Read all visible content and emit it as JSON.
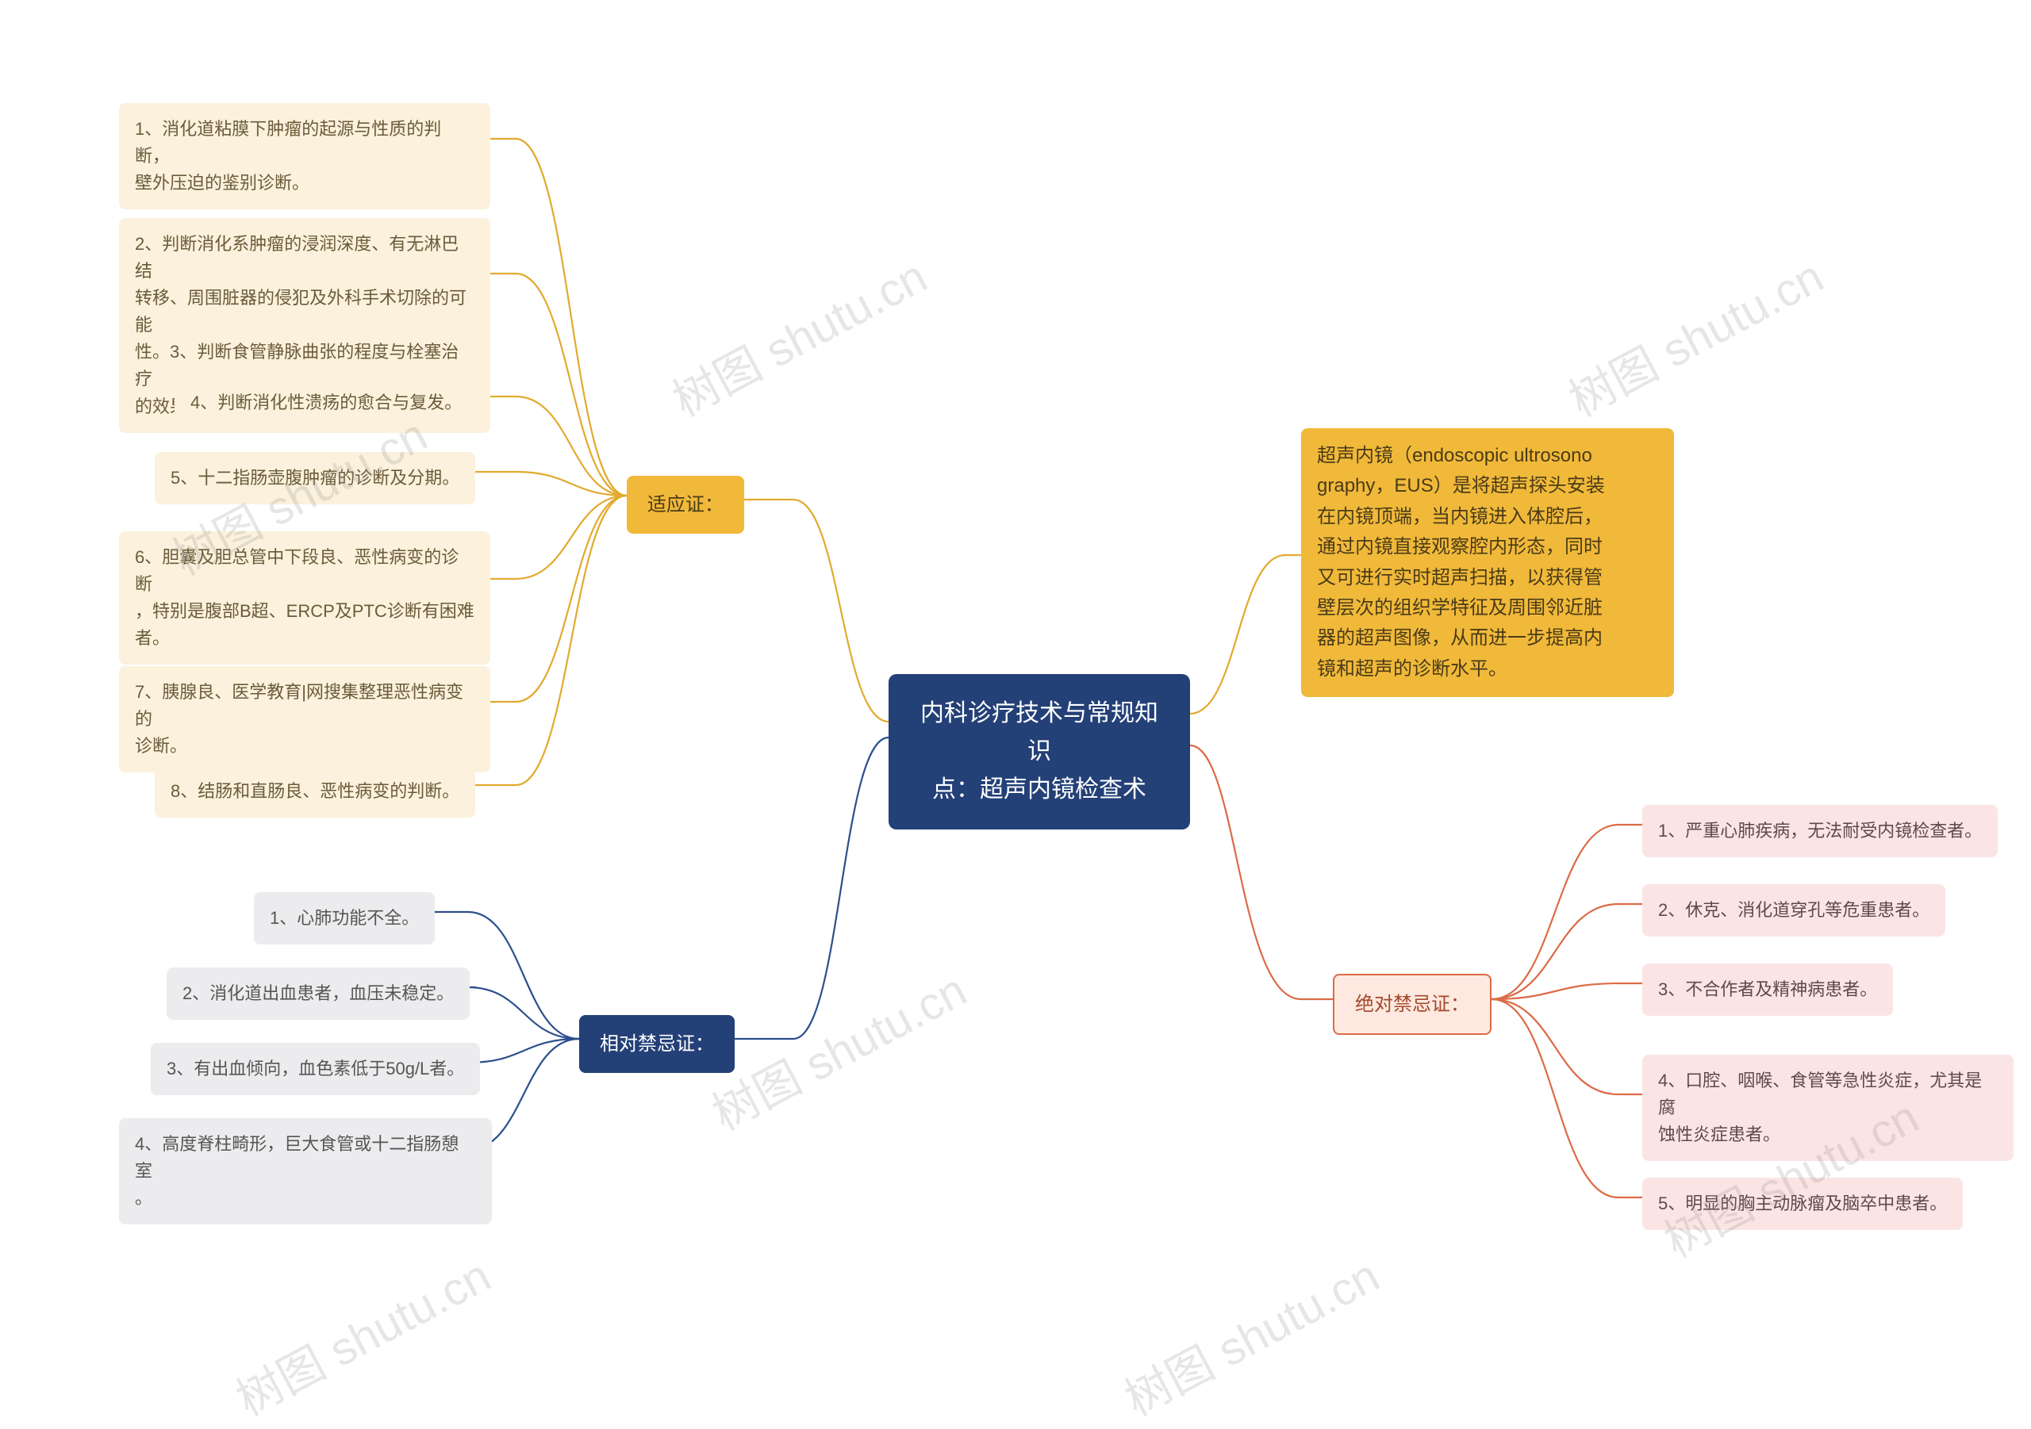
{
  "center": {
    "title": "内科诊疗技术与常规知识\n点：超声内镜检查术",
    "bg": "#234077",
    "fg": "#ffffff"
  },
  "description": {
    "text": "超声内镜（endoscopic ultrosono\ngraphy，EUS）是将超声探头安装\n在内镜顶端，当内镜进入体腔后，\n通过内镜直接观察腔内形态，同时\n又可进行实时超声扫描，以获得管\n壁层次的组织学特征及周围邻近脏\n器的超声图像，从而进一步提高内\n镜和超声的诊断水平。",
    "bg": "#f1b93a",
    "fg": "#4a3b17"
  },
  "branches": {
    "indications": {
      "label": "适应证：",
      "color": "#f1b93a",
      "line": "#e2aa2f",
      "items": [
        "1、消化道粘膜下肿瘤的起源与性质的判断，\n壁外压迫的鉴别诊断。",
        "2、判断消化系肿瘤的浸润深度、有无淋巴结\n转移、周围脏器的侵犯及外科手术切除的可能\n性。3、判断食管静脉曲张的程度与栓塞治疗\n的效果。",
        "4、判断消化性溃疡的愈合与复发。",
        "5、十二指肠壶腹肿瘤的诊断及分期。",
        "6、胆囊及胆总管中下段良、恶性病变的诊断\n，特别是腹部B超、ERCP及PTC诊断有困难\n者。",
        "7、胰腺良、医学教育|网搜集整理恶性病变的\n诊断。",
        "8、结肠和直肠良、恶性病变的判断。"
      ]
    },
    "relative": {
      "label": "相对禁忌证：",
      "color": "#234077",
      "line": "#2d4f8e",
      "items": [
        "1、心肺功能不全。",
        "2、消化道出血患者，血压未稳定。",
        "3、有出血倾向，血色素低于50g/L者。",
        "4、高度脊柱畸形，巨大食管或十二指肠憩室\n。"
      ]
    },
    "absolute": {
      "label": "绝对禁忌证：",
      "color": "#dc6b46",
      "line": "#dc6b46",
      "items": [
        "1、严重心肺疾病，无法耐受内镜检查者。",
        "2、休克、消化道穿孔等危重患者。",
        "3、不合作者及精神病患者。",
        "4、口腔、咽喉、食管等急性炎症，尤其是腐\n蚀性炎症患者。",
        "5、明显的胸主动脉瘤及脑卒中患者。"
      ]
    }
  },
  "watermark": "树图 shutu.cn"
}
